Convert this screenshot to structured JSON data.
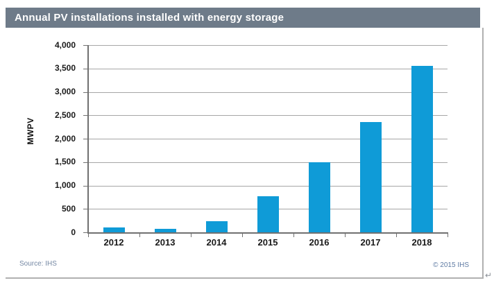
{
  "title": "Annual PV installations installed with energy storage",
  "footer": {
    "source": "Source: IHS",
    "copyright": "© 2015 IHS",
    "paragraph_mark": "↵"
  },
  "colors": {
    "titlebar_bg": "#6e7b89",
    "title_text": "#ffffff",
    "bar": "#0f9bd7",
    "gridline": "#a6a6a6",
    "axis": "#707070",
    "frame_border": "#b0b0b0",
    "source_text": "#7487a3",
    "copyright_text": "#5f7ba3",
    "paragraph_mark": "#8b9198"
  },
  "chart_data": {
    "type": "bar",
    "title": "Annual PV installations installed with energy storage",
    "categories": [
      "2012",
      "2013",
      "2014",
      "2015",
      "2016",
      "2017",
      "2018"
    ],
    "values": [
      100,
      80,
      230,
      775,
      1490,
      2360,
      3560
    ],
    "xlabel": "",
    "ylabel": "MWPV",
    "ylim": [
      0,
      4000
    ],
    "y_tick_values": [
      0,
      500,
      1000,
      1500,
      2000,
      2500,
      3000,
      3500,
      4000
    ],
    "y_tick_labels": [
      "0",
      "500",
      "1,000",
      "1,500",
      "2,000",
      "2,500",
      "3,000",
      "3,500",
      "4,000"
    ],
    "grid": true,
    "legend": false,
    "bar_color": "#0f9bd7"
  }
}
